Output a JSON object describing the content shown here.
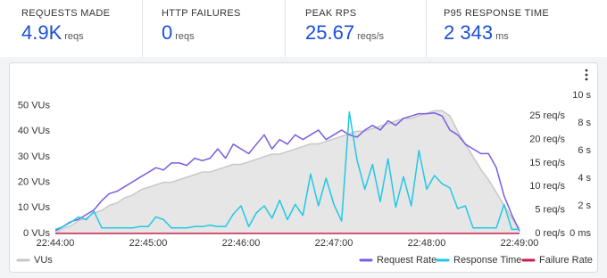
{
  "stats": [
    {
      "label": "REQUESTS MADE",
      "value": "4.9K",
      "unit": "reqs"
    },
    {
      "label": "HTTP FAILURES",
      "value": "0",
      "unit": "reqs"
    },
    {
      "label": "PEAK RPS",
      "value": "25.67",
      "unit": "reqs/s"
    },
    {
      "label": "P95 RESPONSE TIME",
      "value": "2 343",
      "unit": "ms"
    }
  ],
  "chart_data": {
    "type": "line",
    "x": [
      "22:44:00",
      "22:44:05",
      "22:44:10",
      "22:44:15",
      "22:44:20",
      "22:44:25",
      "22:44:30",
      "22:44:35",
      "22:44:40",
      "22:44:45",
      "22:44:50",
      "22:44:55",
      "22:45:00",
      "22:45:05",
      "22:45:10",
      "22:45:15",
      "22:45:20",
      "22:45:25",
      "22:45:30",
      "22:45:35",
      "22:45:40",
      "22:45:45",
      "22:45:50",
      "22:45:55",
      "22:46:00",
      "22:46:05",
      "22:46:10",
      "22:46:15",
      "22:46:20",
      "22:46:25",
      "22:46:30",
      "22:46:35",
      "22:46:40",
      "22:46:45",
      "22:46:50",
      "22:46:55",
      "22:47:00",
      "22:47:05",
      "22:47:10",
      "22:47:15",
      "22:47:20",
      "22:47:25",
      "22:47:30",
      "22:47:35",
      "22:47:40",
      "22:47:45",
      "22:47:50",
      "22:47:55",
      "22:48:00",
      "22:48:05",
      "22:48:10",
      "22:48:15",
      "22:48:20",
      "22:48:25",
      "22:48:30",
      "22:48:35",
      "22:48:40",
      "22:48:45",
      "22:48:50",
      "22:48:55",
      "22:49:00"
    ],
    "xlim": [
      "22:44:00",
      "22:49:00"
    ],
    "xticks": [
      "22:44:00",
      "22:45:00",
      "22:46:00",
      "22:47:00",
      "22:48:00",
      "22:49:00"
    ],
    "ylim": [
      0,
      54
    ],
    "yticks": [
      {
        "value": 0,
        "label": "0 VUs"
      },
      {
        "value": 10,
        "label": "10 VUs"
      },
      {
        "value": 20,
        "label": "20 VUs"
      },
      {
        "value": 30,
        "label": "30 VUs"
      },
      {
        "value": 40,
        "label": "40 VUs"
      },
      {
        "value": 50,
        "label": "50 VUs"
      }
    ],
    "y2lim": [
      0,
      29.4
    ],
    "y2ticks": [
      {
        "value": 0,
        "label": "0 req/s"
      },
      {
        "value": 5,
        "label": "5 req/s"
      },
      {
        "value": 10,
        "label": "10 req/s"
      },
      {
        "value": 15,
        "label": "15 req/s"
      },
      {
        "value": 20,
        "label": "20 req/s"
      },
      {
        "value": 25,
        "label": "25 req/s"
      }
    ],
    "y3lim": [
      0,
      10
    ],
    "y3ticks": [
      {
        "value": 0,
        "label": "0 ms"
      },
      {
        "value": 2,
        "label": "2 s"
      },
      {
        "value": 4,
        "label": "4 s"
      },
      {
        "value": 6,
        "label": "6 s"
      },
      {
        "value": 8,
        "label": "8 s"
      },
      {
        "value": 10,
        "label": "10 s"
      }
    ],
    "grid": false,
    "series": [
      {
        "name": "VUs",
        "color": "#c8c8c8",
        "fill": "#e6e6e6",
        "values": [
          0,
          2,
          3,
          5,
          6,
          8,
          9,
          11,
          12,
          14,
          15,
          17,
          18,
          19,
          20,
          20,
          21,
          22,
          23,
          24,
          24,
          25,
          26,
          27,
          27,
          28,
          29,
          30,
          31,
          31,
          32,
          33,
          34,
          35,
          35,
          36,
          37,
          38,
          39,
          40,
          40,
          41,
          42,
          43,
          44,
          45,
          45,
          46,
          47,
          48,
          48,
          46,
          40,
          35,
          30,
          25,
          21,
          16,
          11,
          6,
          2
        ]
      },
      {
        "name": "Request Rate",
        "color": "#7a5ce0",
        "axis": "y2",
        "values": [
          0.5,
          1.5,
          2.5,
          3,
          4,
          5,
          7,
          8.5,
          9,
          10,
          11,
          12,
          13,
          14,
          13.5,
          15,
          15,
          14.5,
          16,
          15.5,
          16,
          18,
          16,
          19,
          18,
          17,
          19,
          21,
          18,
          20,
          19,
          21,
          20,
          21,
          22,
          20,
          21,
          22,
          21,
          20.5,
          22,
          23,
          22,
          24,
          23,
          24.5,
          25,
          25.5,
          25.5,
          25.67,
          25,
          22,
          21,
          19,
          18,
          17,
          17,
          14,
          8,
          4,
          0.5
        ]
      },
      {
        "name": "Response Time",
        "color": "#22c8e6",
        "axis": "y3",
        "values": [
          0.3,
          0.5,
          0.8,
          1.2,
          1,
          1.6,
          0.4,
          0.4,
          0.4,
          0.4,
          0.4,
          0.5,
          0.5,
          1.2,
          1,
          0.4,
          0.4,
          0.4,
          0.5,
          0.5,
          0.6,
          0.5,
          0.5,
          1.4,
          2,
          0.5,
          1.5,
          2,
          1.1,
          2.4,
          1,
          2.1,
          1.3,
          4.3,
          2,
          4,
          2.1,
          0.9,
          8.8,
          5.3,
          3.2,
          5,
          2.3,
          5.4,
          1.9,
          4.1,
          2,
          6,
          3.2,
          4.2,
          3.6,
          3.3,
          1.8,
          2,
          0.4,
          0.4,
          0.4,
          0.4,
          2.1,
          0.3,
          0.3
        ]
      },
      {
        "name": "Failure Rate",
        "color": "#c8214f",
        "axis": "y2",
        "values": [
          0,
          0,
          0,
          0,
          0,
          0,
          0,
          0,
          0,
          0,
          0,
          0,
          0,
          0,
          0,
          0,
          0,
          0,
          0,
          0,
          0,
          0,
          0,
          0,
          0,
          0,
          0,
          0,
          0,
          0,
          0,
          0,
          0,
          0,
          0,
          0,
          0,
          0,
          0,
          0,
          0,
          0,
          0,
          0,
          0,
          0,
          0,
          0,
          0,
          0,
          0,
          0,
          0,
          0,
          0,
          0,
          0,
          0,
          0,
          0,
          0
        ]
      }
    ]
  }
}
